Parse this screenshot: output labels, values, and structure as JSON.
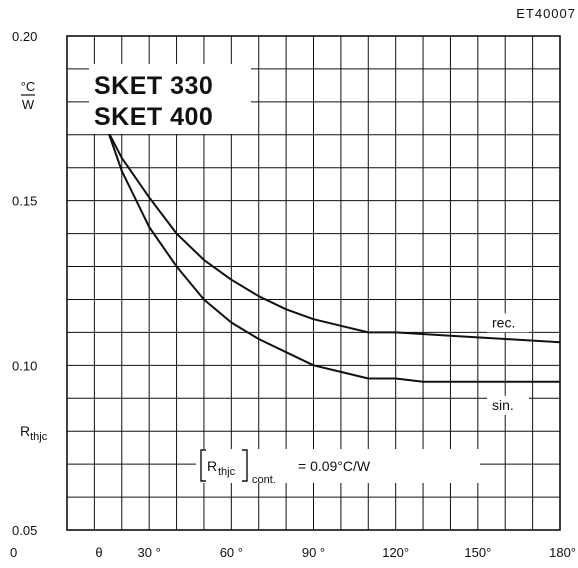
{
  "code": "ET40007",
  "chart_data": {
    "type": "line",
    "title_lines": [
      "SKET 330",
      "SKET 400"
    ],
    "y_unit": {
      "num": "°C",
      "den": "W"
    },
    "y_symbol": {
      "main": "R",
      "sub": "thjc"
    },
    "x_first_label": "θ",
    "ylim": [
      0.05,
      0.2
    ],
    "xlim": [
      0,
      180
    ],
    "y_ticks": [
      {
        "value": 0.2,
        "label": "0.20"
      },
      {
        "value": 0.15,
        "label": "0.15"
      },
      {
        "value": 0.1,
        "label": "0.10"
      },
      {
        "value": 0.05,
        "label": "0.05"
      }
    ],
    "x_ticks": [
      {
        "value": 0,
        "label": "0"
      },
      {
        "value": 30,
        "label": "30 °"
      },
      {
        "value": 60,
        "label": "60 °"
      },
      {
        "value": 90,
        "label": "90 °"
      },
      {
        "value": 120,
        "label": "120°"
      },
      {
        "value": 150,
        "label": "150°"
      },
      {
        "value": 180,
        "label": "180°"
      }
    ],
    "grid": true,
    "series": [
      {
        "name": "rec.",
        "x": [
          15,
          20,
          30,
          40,
          50,
          60,
          70,
          80,
          90,
          100,
          110,
          120,
          140,
          160,
          180
        ],
        "y": [
          0.171,
          0.163,
          0.151,
          0.14,
          0.132,
          0.126,
          0.121,
          0.117,
          0.114,
          0.112,
          0.11,
          0.11,
          0.109,
          0.108,
          0.107
        ]
      },
      {
        "name": "sin.",
        "x": [
          15,
          20,
          30,
          40,
          50,
          60,
          70,
          80,
          90,
          100,
          110,
          120,
          130,
          140,
          160,
          180
        ],
        "y": [
          0.171,
          0.159,
          0.142,
          0.13,
          0.12,
          0.113,
          0.108,
          0.104,
          0.1,
          0.098,
          0.096,
          0.096,
          0.095,
          0.095,
          0.095,
          0.095
        ]
      }
    ],
    "annotation": {
      "symbol": "R",
      "sub1": "thjc",
      "sub2": "cont.",
      "text": "=  0.09°C/W"
    }
  }
}
